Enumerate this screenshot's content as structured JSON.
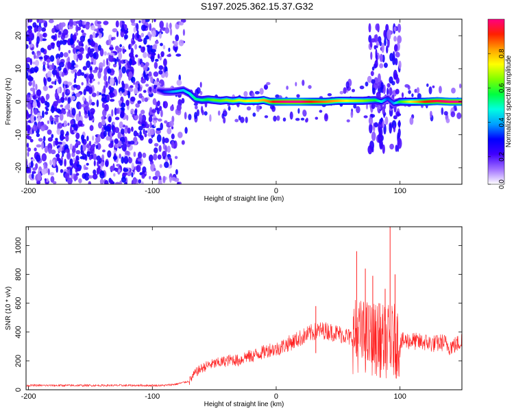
{
  "title": "S197.2025.362.15.37.G32",
  "chart_data": [
    {
      "type": "heatmap",
      "panel": "spectrogram",
      "xlabel": "Height of straight line (km)",
      "ylabel": "Frequency (Hz)",
      "xlim": [
        -202,
        150
      ],
      "ylim": [
        -25,
        25
      ],
      "xticks": [
        -200,
        -100,
        0,
        100
      ],
      "yticks": [
        -20,
        -10,
        0,
        10,
        20
      ],
      "colorbar": {
        "label": "Normalized spectral amplitude",
        "range": [
          0,
          1
        ],
        "ticks": [
          "0.0",
          "0.2",
          "0.4",
          "0.6",
          "0.8"
        ],
        "colors": [
          "#ffffff",
          "#a070ff",
          "#4000ff",
          "#0000ff",
          "#00a0ff",
          "#00ffe0",
          "#00ff40",
          "#80ff00",
          "#ffff00",
          "#ffa000",
          "#ff2000",
          "#ff0080"
        ]
      },
      "ridge": {
        "description": "frequency ridge of normalized amplitude vs height",
        "x": [
          -95,
          -90,
          -85,
          -80,
          -75,
          -70,
          -65,
          -60,
          -55,
          -50,
          -45,
          -40,
          -35,
          -30,
          -25,
          -20,
          -15,
          -10,
          -5,
          0,
          10,
          20,
          30,
          40,
          50,
          60,
          70,
          80,
          85,
          90,
          95,
          100,
          110,
          120,
          130,
          140,
          150
        ],
        "freq": [
          3.5,
          3,
          3,
          3.2,
          3.5,
          2.5,
          0.8,
          0.5,
          0.7,
          0.5,
          0.3,
          0.5,
          0.2,
          0.5,
          0.2,
          0.3,
          0.3,
          0.5,
          0,
          0,
          0,
          0,
          0,
          0,
          0.3,
          0.3,
          0.3,
          0.5,
          0,
          1,
          -0.5,
          0,
          0,
          0,
          0.2,
          0,
          0
        ],
        "amplitude": [
          0.2,
          0.3,
          0.35,
          0.4,
          0.4,
          0.45,
          0.5,
          0.5,
          0.55,
          0.6,
          0.6,
          0.65,
          0.65,
          0.7,
          0.7,
          0.75,
          0.75,
          0.8,
          0.85,
          0.95,
          1.0,
          1.0,
          0.9,
          0.85,
          0.8,
          0.7,
          0.65,
          0.55,
          0.45,
          0.3,
          0.35,
          0.55,
          0.75,
          0.9,
          0.95,
          1.0,
          1.0
        ]
      },
      "noise_region_x": [
        -202,
        -70
      ],
      "disturbance_x": [
        75,
        100
      ]
    },
    {
      "type": "line",
      "panel": "snr",
      "xlabel": "Height of straight line (km)",
      "ylabel": "SNR (10 * v/v)",
      "xlim": [
        -202,
        150
      ],
      "ylim": [
        0,
        1130
      ],
      "xticks": [
        -200,
        -100,
        0,
        100
      ],
      "yticks": [
        0,
        200,
        400,
        600,
        800,
        1000
      ],
      "series": [
        {
          "name": "SNR",
          "color": "#ff2020",
          "x": [
            -202,
            -180,
            -160,
            -140,
            -120,
            -100,
            -90,
            -80,
            -70,
            -65,
            -60,
            -55,
            -50,
            -45,
            -40,
            -35,
            -30,
            -25,
            -20,
            -15,
            -10,
            -5,
            0,
            5,
            10,
            15,
            20,
            25,
            30,
            35,
            40,
            45,
            50,
            55,
            60,
            65,
            70,
            75,
            80,
            85,
            90,
            95,
            100,
            105,
            110,
            115,
            120,
            125,
            130,
            135,
            140,
            145,
            150
          ],
          "y": [
            30,
            30,
            30,
            30,
            30,
            30,
            30,
            40,
            60,
            120,
            150,
            170,
            180,
            190,
            200,
            210,
            200,
            230,
            230,
            250,
            260,
            280,
            280,
            300,
            320,
            340,
            360,
            380,
            400,
            410,
            410,
            400,
            390,
            380,
            360,
            380,
            370,
            360,
            350,
            340,
            330,
            340,
            330,
            340,
            340,
            330,
            330,
            320,
            320,
            330,
            300,
            310,
            340
          ]
        }
      ],
      "spikes": [
        {
          "x": 32,
          "y": 580
        },
        {
          "x": 65,
          "y": 960
        },
        {
          "x": 72,
          "y": 840
        },
        {
          "x": 78,
          "y": 790
        },
        {
          "x": 83,
          "y": 600
        },
        {
          "x": 88,
          "y": 700
        },
        {
          "x": 92,
          "y": 1130
        },
        {
          "x": 96,
          "y": 800
        }
      ],
      "noisy_band_x": [
        62,
        100
      ]
    }
  ]
}
